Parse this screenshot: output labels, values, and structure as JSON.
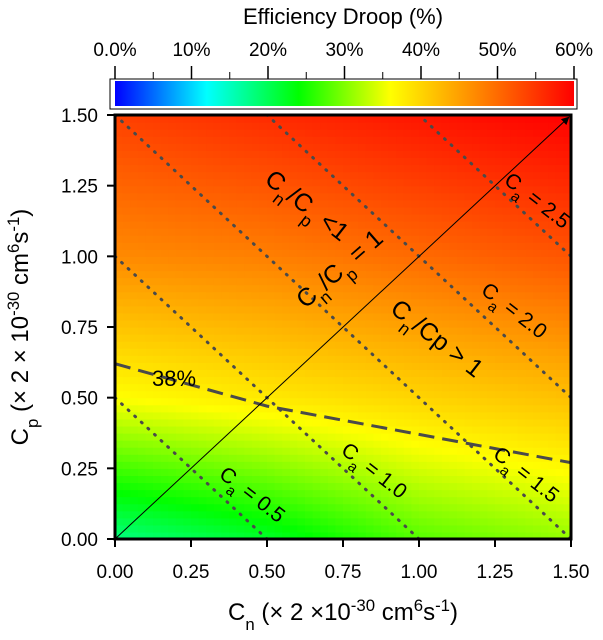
{
  "chart_data": {
    "type": "heatmap",
    "title": "",
    "colorbar": {
      "label": "Efficiency Droop (%)",
      "range": [
        0,
        60
      ],
      "ticks": [
        "0.0%",
        "10%",
        "20%",
        "30%",
        "40%",
        "50%",
        "60%"
      ],
      "colors": [
        "#0000ff",
        "#00ffff",
        "#00ff00",
        "#ffff00",
        "#ff8000",
        "#ff0000"
      ]
    },
    "xlabel": {
      "main": "C",
      "sub": "n",
      "pre": " (× 2 ×10",
      "exp": "-30",
      "unit": " cm",
      "unit_exp": "6",
      "unit_s": "s",
      "unit_s_exp": "-1",
      "close": ")"
    },
    "ylabel": {
      "main": "C",
      "sub": "p",
      "pre": " (× 2 × 10",
      "exp": "-30",
      "unit": " cm",
      "unit_exp": "6",
      "unit_s": "s",
      "unit_s_exp": "-1",
      "close": ")"
    },
    "xlim": [
      0,
      1.5
    ],
    "ylim": [
      0,
      1.5
    ],
    "xticks": [
      "0.00",
      "0.25",
      "0.50",
      "0.75",
      "1.00",
      "1.25",
      "1.50"
    ],
    "yticks": [
      "0.00",
      "0.25",
      "0.50",
      "0.75",
      "1.00",
      "1.25",
      "1.50"
    ],
    "surface_samples": [
      {
        "cn": 0.0,
        "cp": 0.0,
        "droop": 18
      },
      {
        "cn": 0.0,
        "cp": 0.5,
        "droop": 36
      },
      {
        "cn": 0.0,
        "cp": 1.0,
        "droop": 47
      },
      {
        "cn": 0.0,
        "cp": 1.5,
        "droop": 54
      },
      {
        "cn": 0.5,
        "cp": 0.0,
        "droop": 22
      },
      {
        "cn": 0.5,
        "cp": 0.5,
        "droop": 38
      },
      {
        "cn": 0.5,
        "cp": 1.0,
        "droop": 48
      },
      {
        "cn": 0.5,
        "cp": 1.5,
        "droop": 56
      },
      {
        "cn": 1.0,
        "cp": 0.0,
        "droop": 28
      },
      {
        "cn": 1.0,
        "cp": 0.5,
        "droop": 40
      },
      {
        "cn": 1.0,
        "cp": 1.0,
        "droop": 50
      },
      {
        "cn": 1.0,
        "cp": 1.5,
        "droop": 58
      },
      {
        "cn": 1.5,
        "cp": 0.0,
        "droop": 31
      },
      {
        "cn": 1.5,
        "cp": 0.5,
        "droop": 42
      },
      {
        "cn": 1.5,
        "cp": 1.0,
        "droop": 52
      },
      {
        "cn": 1.5,
        "cp": 1.5,
        "droop": 60
      }
    ],
    "ca_lines": [
      {
        "name": "C",
        "sub": "a",
        "value": "0.5",
        "cn_intercept": 0.5,
        "cp_intercept": 0.5
      },
      {
        "name": "C",
        "sub": "a",
        "value": "1.0",
        "cn_intercept": 1.0,
        "cp_intercept": 1.0
      },
      {
        "name": "C",
        "sub": "a",
        "value": "1.5",
        "cn_intercept": 1.5,
        "cp_intercept": 1.5
      },
      {
        "name": "C",
        "sub": "a",
        "value": "2.0",
        "cn_intercept": 2.0,
        "cp_intercept": 2.0
      },
      {
        "name": "C",
        "sub": "a",
        "value": "2.5",
        "cn_intercept": 2.5,
        "cp_intercept": 2.5
      }
    ],
    "ca_label_text": " = ",
    "contour_38": {
      "label": "38%",
      "points": [
        [
          0.0,
          0.62
        ],
        [
          0.5,
          0.47
        ],
        [
          1.0,
          0.37
        ],
        [
          1.5,
          0.27
        ]
      ]
    },
    "diagonal": {
      "label": "C",
      "sub1": "n",
      "slash": "/C",
      "sub2": "p",
      "tail": " = 1",
      "from": [
        0,
        0
      ],
      "to": [
        1.5,
        1.5
      ]
    },
    "region_upper": {
      "label": "C",
      "sub1": "n",
      "slash": "/C",
      "sub2": "p",
      "tail": " <1"
    },
    "region_lower": {
      "label": "C",
      "sub1": "n",
      "slash": "/Cp",
      "sub2": "",
      "tail": " > 1"
    }
  }
}
